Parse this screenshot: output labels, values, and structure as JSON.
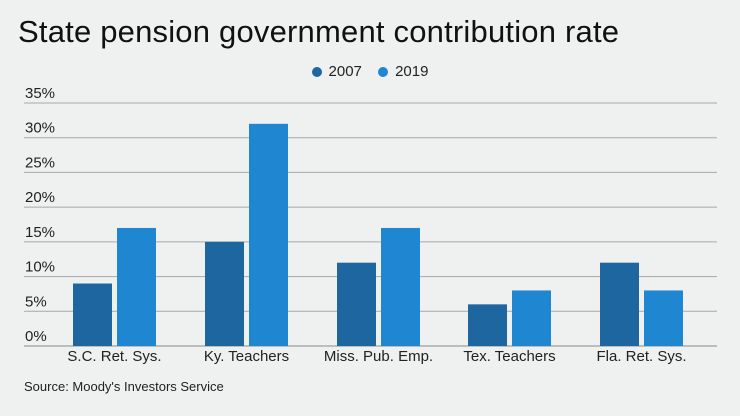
{
  "chart_data": {
    "type": "bar",
    "title": "State pension government contribution rate",
    "xlabel": "",
    "ylabel": "",
    "categories": [
      "S.C. Ret. Sys.",
      "Ky. Teachers",
      "Miss. Pub. Emp.",
      "Tex. Teachers",
      "Fla. Ret. Sys."
    ],
    "series": [
      {
        "name": "2007",
        "color": "#1e669f",
        "values": [
          9,
          15,
          12,
          6,
          12
        ]
      },
      {
        "name": "2019",
        "color": "#1f86d2",
        "values": [
          17,
          32,
          17,
          8,
          8
        ]
      }
    ],
    "ylim": [
      0,
      35
    ],
    "yticks": [
      0,
      5,
      10,
      15,
      20,
      25,
      30,
      35
    ],
    "ytick_labels": [
      "0%",
      "5%",
      "10%",
      "15%",
      "20%",
      "25%",
      "30%",
      "35%"
    ],
    "grid": true,
    "legend_position": "top-center",
    "source": "Source: Moody's Investors Service"
  }
}
